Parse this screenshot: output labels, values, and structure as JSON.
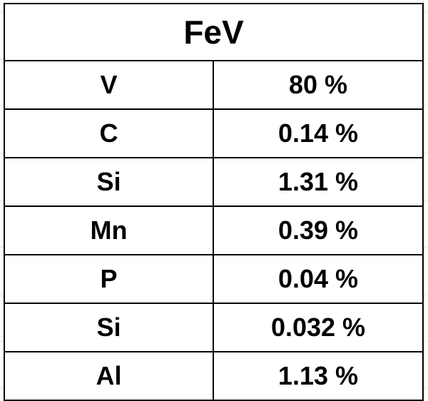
{
  "table": {
    "title": "FeV",
    "rows": [
      {
        "element": "V",
        "value": "80 %"
      },
      {
        "element": "C",
        "value": "0.14 %"
      },
      {
        "element": "Si",
        "value": "1.31 %"
      },
      {
        "element": "Mn",
        "value": "0.39 %"
      },
      {
        "element": "P",
        "value": "0.04 %"
      },
      {
        "element": "Si",
        "value": "0.032 %"
      },
      {
        "element": "Al",
        "value": "1.13 %"
      }
    ]
  }
}
